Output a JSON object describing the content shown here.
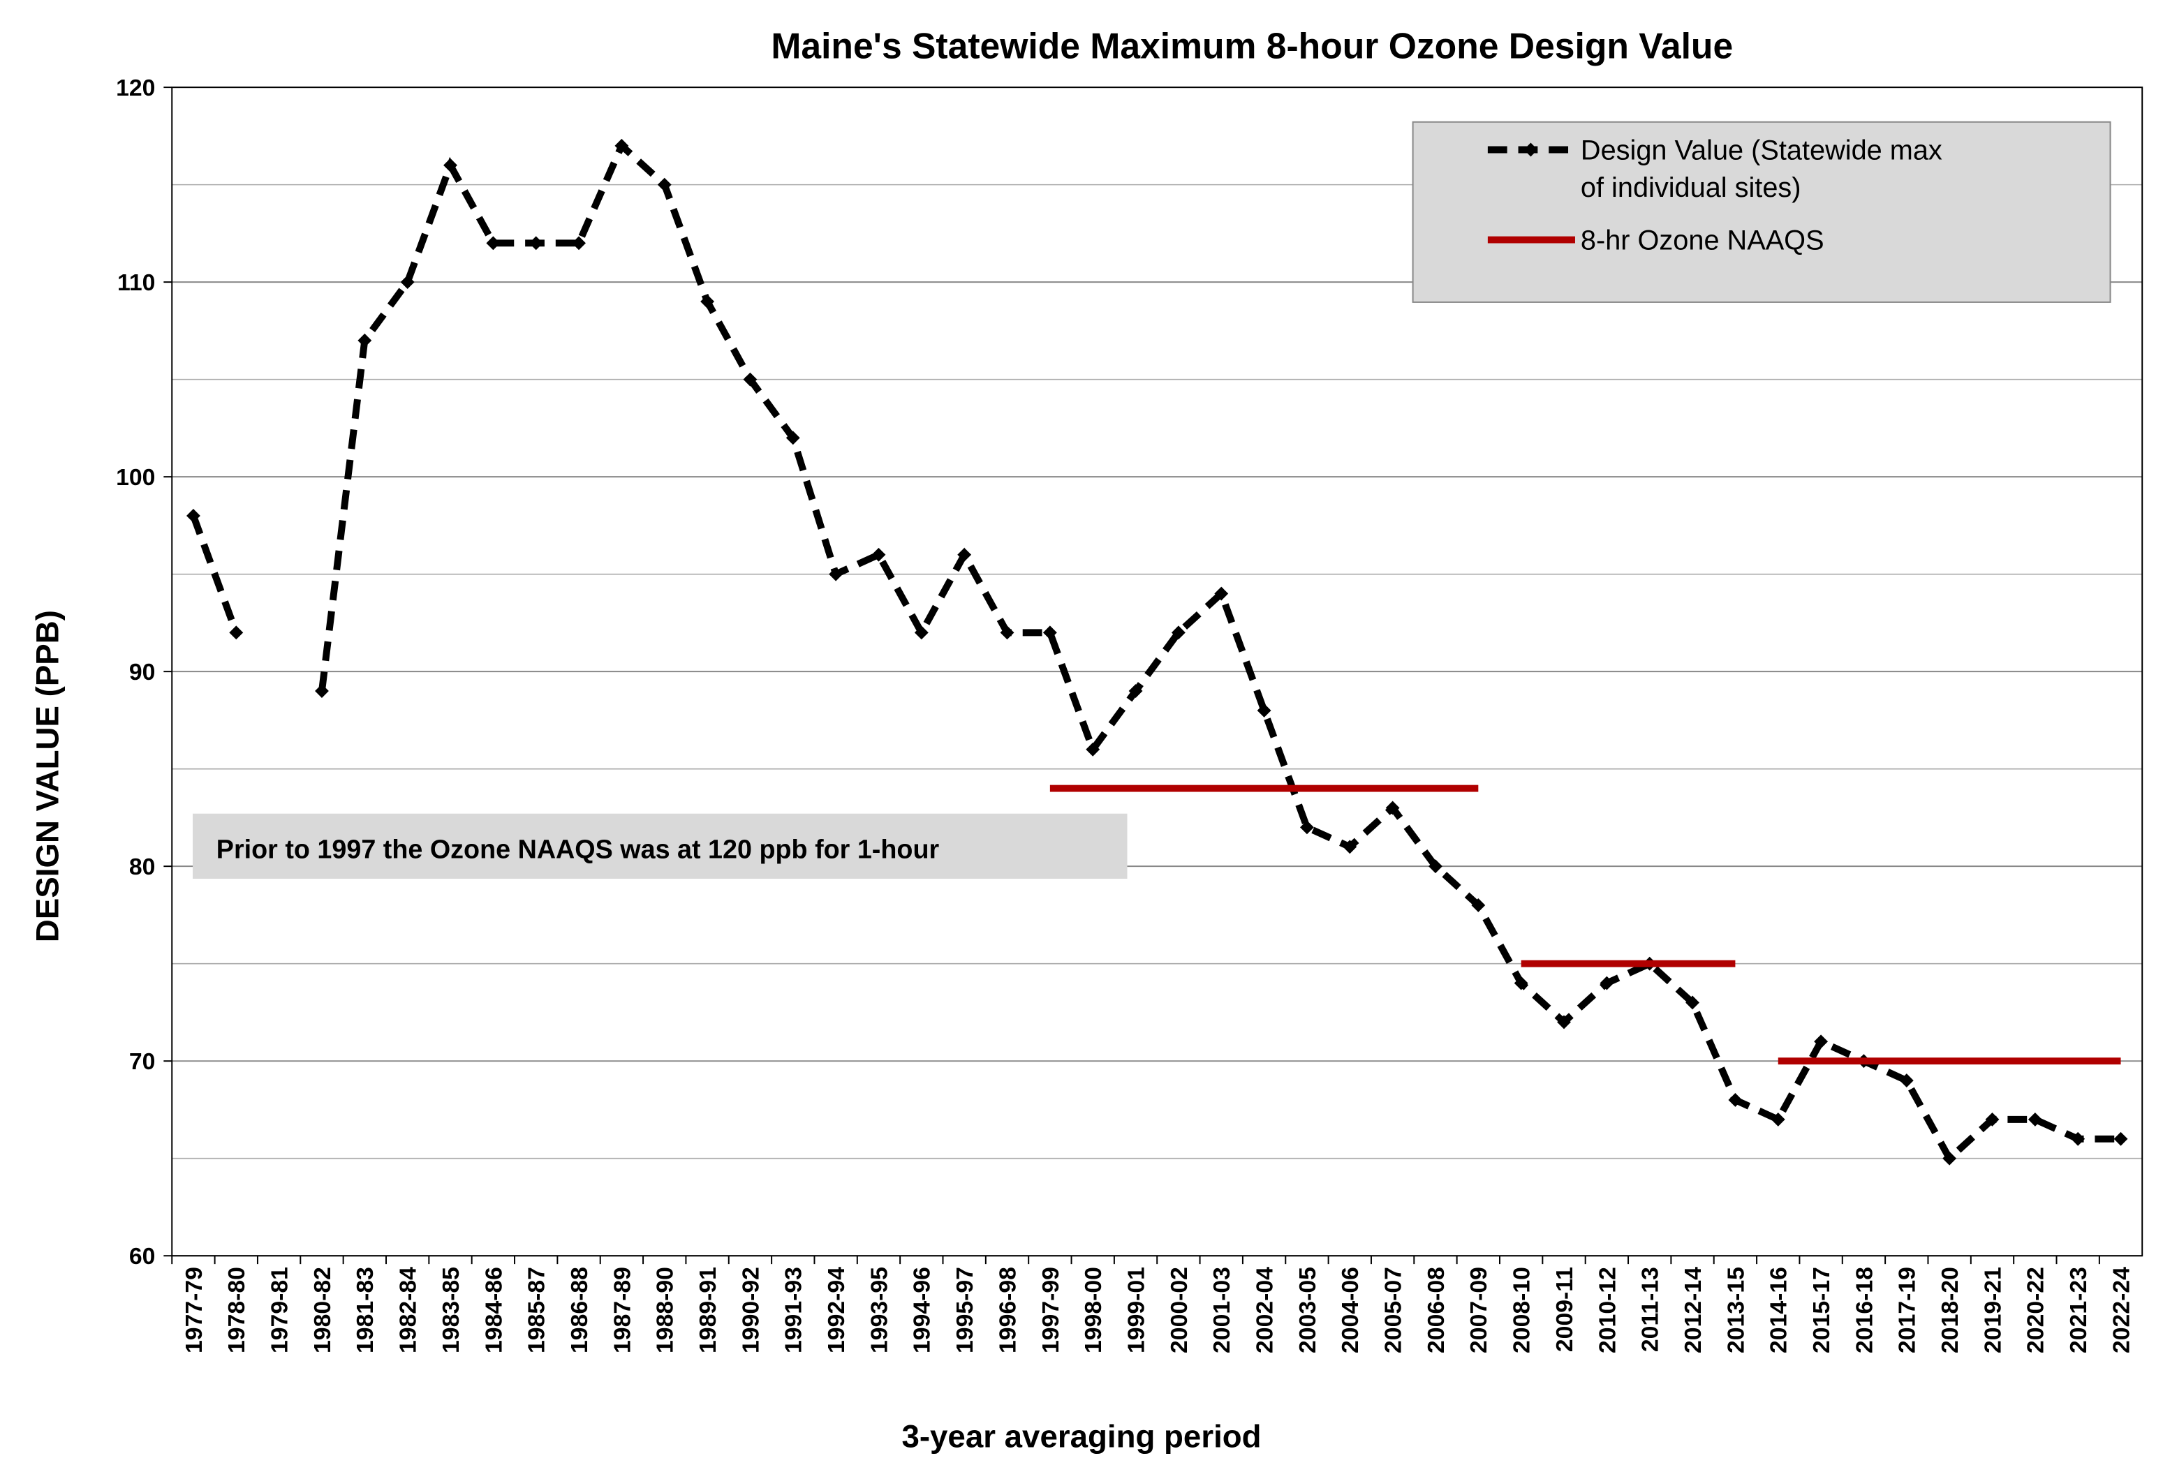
{
  "chart_data": {
    "type": "line",
    "title": "Maine's Statewide Maximum 8-hour Ozone Design Value",
    "x_label": "3-year averaging period",
    "y_label": "DESIGN VALUE (PPB)",
    "annotation": "Prior to 1997 the Ozone NAAQS was at 120 ppb for 1-hour",
    "categories": [
      "1977-79",
      "1978-80",
      "1979-81",
      "1980-82",
      "1981-83",
      "1982-84",
      "1983-85",
      "1984-86",
      "1985-87",
      "1986-88",
      "1987-89",
      "1988-90",
      "1989-91",
      "1990-92",
      "1991-93",
      "1992-94",
      "1993-95",
      "1994-96",
      "1995-97",
      "1996-98",
      "1997-99",
      "1998-00",
      "1999-01",
      "2000-02",
      "2001-03",
      "2002-04",
      "2003-05",
      "2004-06",
      "2005-07",
      "2006-08",
      "2007-09",
      "2008-10",
      "2009-11",
      "2010-12",
      "2011-13",
      "2012-14",
      "2013-15",
      "2014-16",
      "2015-17",
      "2016-18",
      "2017-19",
      "2018-20",
      "2019-21",
      "2020-22",
      "2021-23",
      "2022-24"
    ],
    "series": [
      {
        "name": "Design Value (Statewide max of individual sites)",
        "color": "#000000",
        "style": "dashed-diamond",
        "values": [
          98,
          92,
          null,
          89,
          107,
          110,
          116,
          112,
          112,
          112,
          117,
          115,
          109,
          105,
          102,
          95,
          96,
          92,
          96,
          92,
          92,
          86,
          89,
          92,
          94,
          88,
          82,
          81,
          83,
          80,
          78,
          74,
          72,
          74,
          75,
          73,
          68,
          67,
          71,
          70,
          69,
          65,
          67,
          67,
          66,
          66
        ]
      },
      {
        "name": "8-hr Ozone NAAQS",
        "color": "#b00000",
        "style": "solid-step",
        "values": [
          null,
          null,
          null,
          null,
          null,
          null,
          null,
          null,
          null,
          null,
          null,
          null,
          null,
          null,
          null,
          null,
          null,
          null,
          null,
          null,
          84,
          84,
          84,
          84,
          84,
          84,
          84,
          84,
          84,
          84,
          84,
          75,
          75,
          75,
          75,
          75,
          75,
          70,
          70,
          70,
          70,
          70,
          70,
          70,
          70,
          70
        ]
      }
    ],
    "ylim": [
      60,
      120
    ],
    "yticks": [
      60,
      70,
      80,
      90,
      100,
      110,
      120
    ],
    "yminor": [
      65,
      75,
      85,
      95,
      105,
      115
    ],
    "grid": true,
    "legend": "top-right"
  }
}
